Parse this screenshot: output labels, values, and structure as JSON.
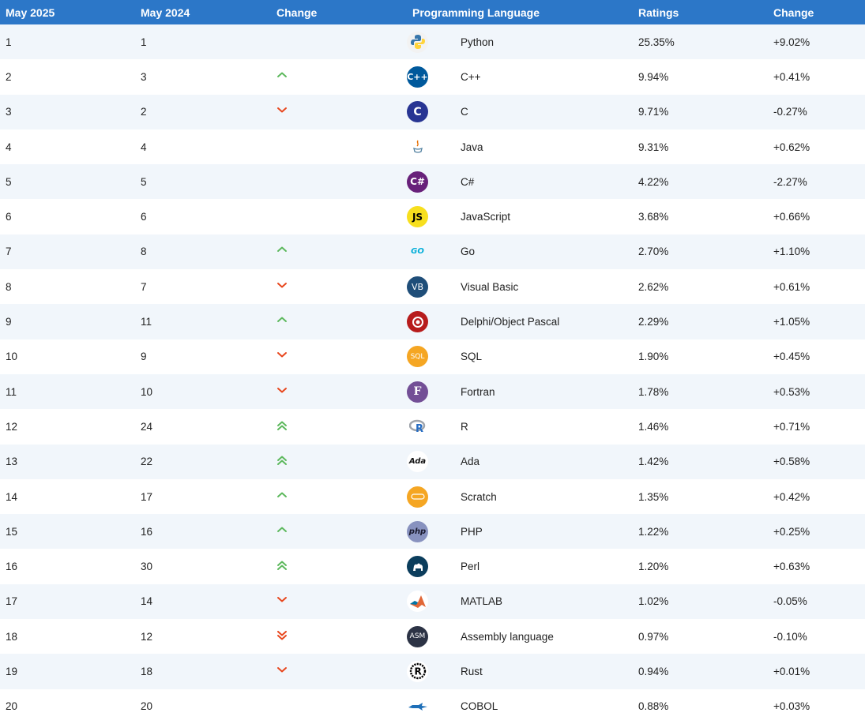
{
  "header": {
    "col_may2025": "May 2025",
    "col_may2024": "May 2024",
    "col_change": "Change",
    "col_language": "Programming Language",
    "col_ratings": "Ratings",
    "col_change2": "Change"
  },
  "colors": {
    "header_bg": "#2c77c8",
    "row_alt": "#f1f6fb",
    "up": "#5cb85c",
    "down": "#e8461c"
  },
  "rows": [
    {
      "rank2025": "1",
      "rank2024": "1",
      "trend": "none",
      "language": "Python",
      "icon": "python-icon",
      "rating": "25.35%",
      "change": "+9.02%"
    },
    {
      "rank2025": "2",
      "rank2024": "3",
      "trend": "up",
      "language": "C++",
      "icon": "cplusplus-icon",
      "rating": "9.94%",
      "change": "+0.41%"
    },
    {
      "rank2025": "3",
      "rank2024": "2",
      "trend": "down",
      "language": "C",
      "icon": "c-icon",
      "rating": "9.71%",
      "change": "-0.27%"
    },
    {
      "rank2025": "4",
      "rank2024": "4",
      "trend": "none",
      "language": "Java",
      "icon": "java-icon",
      "rating": "9.31%",
      "change": "+0.62%"
    },
    {
      "rank2025": "5",
      "rank2024": "5",
      "trend": "none",
      "language": "C#",
      "icon": "csharp-icon",
      "rating": "4.22%",
      "change": "-2.27%"
    },
    {
      "rank2025": "6",
      "rank2024": "6",
      "trend": "none",
      "language": "JavaScript",
      "icon": "javascript-icon",
      "rating": "3.68%",
      "change": "+0.66%"
    },
    {
      "rank2025": "7",
      "rank2024": "8",
      "trend": "up",
      "language": "Go",
      "icon": "go-icon",
      "rating": "2.70%",
      "change": "+1.10%"
    },
    {
      "rank2025": "8",
      "rank2024": "7",
      "trend": "down",
      "language": "Visual Basic",
      "icon": "visual-basic-icon",
      "rating": "2.62%",
      "change": "+0.61%"
    },
    {
      "rank2025": "9",
      "rank2024": "11",
      "trend": "up",
      "language": "Delphi/Object Pascal",
      "icon": "delphi-icon",
      "rating": "2.29%",
      "change": "+1.05%"
    },
    {
      "rank2025": "10",
      "rank2024": "9",
      "trend": "down",
      "language": "SQL",
      "icon": "sql-icon",
      "rating": "1.90%",
      "change": "+0.45%"
    },
    {
      "rank2025": "11",
      "rank2024": "10",
      "trend": "down",
      "language": "Fortran",
      "icon": "fortran-icon",
      "rating": "1.78%",
      "change": "+0.53%"
    },
    {
      "rank2025": "12",
      "rank2024": "24",
      "trend": "up2",
      "language": "R",
      "icon": "r-icon",
      "rating": "1.46%",
      "change": "+0.71%"
    },
    {
      "rank2025": "13",
      "rank2024": "22",
      "trend": "up2",
      "language": "Ada",
      "icon": "ada-icon",
      "rating": "1.42%",
      "change": "+0.58%"
    },
    {
      "rank2025": "14",
      "rank2024": "17",
      "trend": "up",
      "language": "Scratch",
      "icon": "scratch-icon",
      "rating": "1.35%",
      "change": "+0.42%"
    },
    {
      "rank2025": "15",
      "rank2024": "16",
      "trend": "up",
      "language": "PHP",
      "icon": "php-icon",
      "rating": "1.22%",
      "change": "+0.25%"
    },
    {
      "rank2025": "16",
      "rank2024": "30",
      "trend": "up2",
      "language": "Perl",
      "icon": "perl-icon",
      "rating": "1.20%",
      "change": "+0.63%"
    },
    {
      "rank2025": "17",
      "rank2024": "14",
      "trend": "down",
      "language": "MATLAB",
      "icon": "matlab-icon",
      "rating": "1.02%",
      "change": "-0.05%"
    },
    {
      "rank2025": "18",
      "rank2024": "12",
      "trend": "down2",
      "language": "Assembly language",
      "icon": "assembly-icon",
      "rating": "0.97%",
      "change": "-0.10%"
    },
    {
      "rank2025": "19",
      "rank2024": "18",
      "trend": "down",
      "language": "Rust",
      "icon": "rust-icon",
      "rating": "0.94%",
      "change": "+0.01%"
    },
    {
      "rank2025": "20",
      "rank2024": "20",
      "trend": "none",
      "language": "COBOL",
      "icon": "cobol-icon",
      "rating": "0.88%",
      "change": "+0.03%"
    }
  ]
}
